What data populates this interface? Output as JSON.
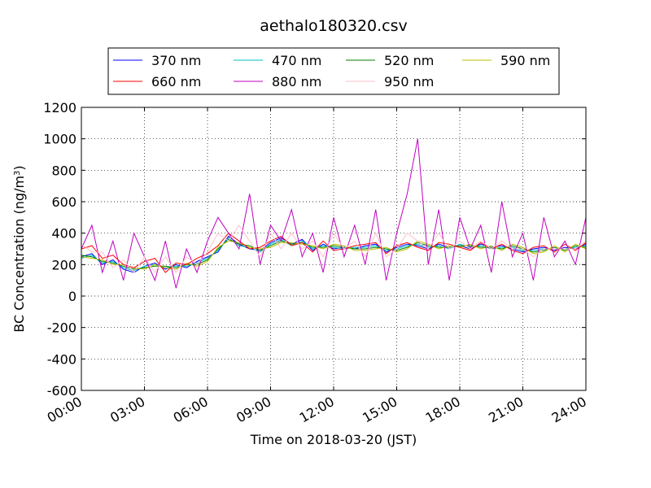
{
  "chart_data": {
    "type": "line",
    "title": "aethalo180320.csv",
    "xlabel": "Time on 2018-03-20 (JST)",
    "ylabel_prefix": "BC Concentration (ng/m",
    "ylabel_sup": "3",
    "ylabel_suffix": ")",
    "xlim": [
      "2018-03-20 00:00",
      "2018-03-21 00:00"
    ],
    "ylim": [
      -600,
      1200
    ],
    "grid": true,
    "legend_position": "top-center",
    "x_tick_labels": [
      "00:00",
      "03:00",
      "06:00",
      "09:00",
      "12:00",
      "15:00",
      "18:00",
      "21:00",
      "24:00"
    ],
    "y_ticks": [
      -600,
      -400,
      -200,
      0,
      200,
      400,
      600,
      800,
      1000,
      1200
    ],
    "series": [
      {
        "name": "370 nm",
        "color": "#0000ff",
        "x_hours": [
          0.0,
          0.5,
          1.0,
          1.5,
          2.0,
          2.5,
          3.0,
          3.5,
          4.0,
          4.5,
          5.0,
          5.5,
          6.0,
          6.5,
          7.0,
          7.5,
          8.0,
          8.5,
          9.0,
          9.5,
          10.0,
          10.5,
          11.0,
          11.5,
          12.0,
          12.5,
          13.0,
          13.5,
          14.0,
          14.5,
          15.0,
          15.5,
          16.0,
          16.5,
          17.0,
          17.5,
          18.0,
          18.5,
          19.0,
          19.5,
          20.0,
          20.5,
          21.0,
          21.5,
          22.0,
          22.5,
          23.0,
          23.5,
          24.0
        ],
        "values": [
          250,
          270,
          200,
          230,
          170,
          150,
          190,
          210,
          170,
          200,
          180,
          220,
          250,
          280,
          380,
          330,
          300,
          290,
          340,
          370,
          330,
          360,
          290,
          330,
          300,
          310,
          300,
          320,
          330,
          280,
          310,
          330,
          320,
          300,
          330,
          310,
          320,
          300,
          330,
          310,
          320,
          300,
          280,
          300,
          310,
          290,
          310,
          300,
          330
        ]
      },
      {
        "name": "470 nm",
        "color": "#00bfbf",
        "x_hours": [
          0.0,
          0.5,
          1.0,
          1.5,
          2.0,
          2.5,
          3.0,
          3.5,
          4.0,
          4.5,
          5.0,
          5.5,
          6.0,
          6.5,
          7.0,
          7.5,
          8.0,
          8.5,
          9.0,
          9.5,
          10.0,
          10.5,
          11.0,
          11.5,
          12.0,
          12.5,
          13.0,
          13.5,
          14.0,
          14.5,
          15.0,
          15.5,
          16.0,
          16.5,
          17.0,
          17.5,
          18.0,
          18.5,
          19.0,
          19.5,
          20.0,
          20.5,
          21.0,
          21.5,
          22.0,
          22.5,
          23.0,
          23.5,
          24.0
        ],
        "values": [
          240,
          260,
          210,
          220,
          180,
          160,
          190,
          200,
          180,
          190,
          190,
          210,
          240,
          290,
          370,
          320,
          310,
          280,
          330,
          360,
          320,
          350,
          300,
          320,
          310,
          300,
          310,
          310,
          320,
          290,
          300,
          320,
          330,
          310,
          320,
          300,
          330,
          310,
          320,
          300,
          310,
          310,
          290,
          290,
          300,
          300,
          300,
          310,
          320
        ]
      },
      {
        "name": "520 nm",
        "color": "#008000",
        "x_hours": [
          0.0,
          0.5,
          1.0,
          1.5,
          2.0,
          2.5,
          3.0,
          3.5,
          4.0,
          4.5,
          5.0,
          5.5,
          6.0,
          6.5,
          7.0,
          7.5,
          8.0,
          8.5,
          9.0,
          9.5,
          10.0,
          10.5,
          11.0,
          11.5,
          12.0,
          12.5,
          13.0,
          13.5,
          14.0,
          14.5,
          15.0,
          15.5,
          16.0,
          16.5,
          17.0,
          17.5,
          18.0,
          18.5,
          19.0,
          19.5,
          20.0,
          20.5,
          21.0,
          21.5,
          22.0,
          22.5,
          23.0,
          23.5,
          24.0
        ],
        "values": [
          260,
          250,
          220,
          210,
          190,
          170,
          180,
          190,
          190,
          180,
          200,
          200,
          230,
          300,
          360,
          330,
          320,
          290,
          320,
          350,
          330,
          340,
          310,
          310,
          320,
          310,
          300,
          300,
          310,
          300,
          290,
          310,
          340,
          320,
          310,
          310,
          320,
          320,
          310,
          310,
          300,
          320,
          300,
          280,
          290,
          310,
          290,
          320,
          310
        ]
      },
      {
        "name": "590 nm",
        "color": "#bfbf00",
        "x_hours": [
          0.0,
          0.5,
          1.0,
          1.5,
          2.0,
          2.5,
          3.0,
          3.5,
          4.0,
          4.5,
          5.0,
          5.5,
          6.0,
          6.5,
          7.0,
          7.5,
          8.0,
          8.5,
          9.0,
          9.5,
          10.0,
          10.5,
          11.0,
          11.5,
          12.0,
          12.5,
          13.0,
          13.5,
          14.0,
          14.5,
          15.0,
          15.5,
          16.0,
          16.5,
          17.0,
          17.5,
          18.0,
          18.5,
          19.0,
          19.5,
          20.0,
          20.5,
          21.0,
          21.5,
          22.0,
          22.5,
          23.0,
          23.5,
          24.0
        ],
        "values": [
          250,
          240,
          230,
          200,
          200,
          180,
          170,
          200,
          180,
          170,
          210,
          190,
          220,
          310,
          350,
          340,
          310,
          300,
          310,
          340,
          340,
          330,
          320,
          300,
          330,
          320,
          290,
          290,
          300,
          310,
          280,
          300,
          350,
          330,
          300,
          320,
          310,
          330,
          300,
          320,
          290,
          330,
          310,
          270,
          280,
          320,
          280,
          330,
          300
        ]
      },
      {
        "name": "660 nm",
        "color": "#ff0000",
        "x_hours": [
          0.0,
          0.5,
          1.0,
          1.5,
          2.0,
          2.5,
          3.0,
          3.5,
          4.0,
          4.5,
          5.0,
          5.5,
          6.0,
          6.5,
          7.0,
          7.5,
          8.0,
          8.5,
          9.0,
          9.5,
          10.0,
          10.5,
          11.0,
          11.5,
          12.0,
          12.5,
          13.0,
          13.5,
          14.0,
          14.5,
          15.0,
          15.5,
          16.0,
          16.5,
          17.0,
          17.5,
          18.0,
          18.5,
          19.0,
          19.5,
          20.0,
          20.5,
          21.0,
          21.5,
          22.0,
          22.5,
          23.0,
          23.5,
          24.0
        ],
        "values": [
          300,
          320,
          240,
          260,
          200,
          180,
          220,
          240,
          150,
          210,
          200,
          240,
          270,
          320,
          400,
          350,
          300,
          310,
          350,
          380,
          320,
          340,
          280,
          350,
          290,
          300,
          320,
          330,
          340,
          270,
          320,
          340,
          310,
          290,
          340,
          330,
          310,
          290,
          340,
          300,
          330,
          290,
          270,
          310,
          320,
          280,
          330,
          290,
          340
        ]
      },
      {
        "name": "880 nm",
        "color": "#bf00bf",
        "x_hours": [
          0.0,
          0.5,
          1.0,
          1.5,
          2.0,
          2.5,
          3.0,
          3.5,
          4.0,
          4.5,
          5.0,
          5.5,
          6.0,
          6.5,
          7.0,
          7.5,
          8.0,
          8.5,
          9.0,
          9.5,
          10.0,
          10.5,
          11.0,
          11.5,
          12.0,
          12.5,
          13.0,
          13.5,
          14.0,
          14.5,
          15.0,
          15.5,
          16.0,
          16.5,
          17.0,
          17.5,
          18.0,
          18.5,
          19.0,
          19.5,
          20.0,
          20.5,
          21.0,
          21.5,
          22.0,
          22.5,
          23.0,
          23.5,
          24.0
        ],
        "values": [
          300,
          450,
          150,
          350,
          100,
          400,
          250,
          100,
          350,
          50,
          300,
          150,
          350,
          500,
          400,
          300,
          650,
          200,
          450,
          350,
          550,
          250,
          400,
          150,
          500,
          250,
          450,
          200,
          550,
          100,
          400,
          650,
          1000,
          200,
          550,
          100,
          500,
          300,
          450,
          150,
          600,
          250,
          400,
          100,
          500,
          250,
          350,
          200,
          500
        ]
      },
      {
        "name": "950 nm",
        "color": "#ffc0cb",
        "x_hours": [
          0.0,
          0.5,
          1.0,
          1.5,
          2.0,
          2.5,
          3.0,
          3.5,
          4.0,
          4.5,
          5.0,
          5.5,
          6.0,
          6.5,
          7.0,
          7.5,
          8.0,
          8.5,
          9.0,
          9.5,
          10.0,
          10.5,
          11.0,
          11.5,
          12.0,
          12.5,
          13.0,
          13.5,
          14.0,
          14.5,
          15.0,
          15.5,
          16.0,
          16.5,
          17.0,
          17.5,
          18.0,
          18.5,
          19.0,
          19.5,
          20.0,
          20.5,
          21.0,
          21.5,
          22.0,
          22.5,
          23.0,
          23.5,
          24.0
        ],
        "values": [
          330,
          280,
          280,
          180,
          230,
          150,
          250,
          150,
          250,
          150,
          250,
          200,
          280,
          400,
          350,
          450,
          350,
          250,
          400,
          300,
          400,
          300,
          350,
          250,
          400,
          300,
          350,
          250,
          400,
          250,
          300,
          400,
          350,
          300,
          400,
          300,
          350,
          300,
          350,
          300,
          350,
          300,
          300,
          250,
          300,
          300,
          300,
          300,
          350
        ]
      }
    ]
  }
}
